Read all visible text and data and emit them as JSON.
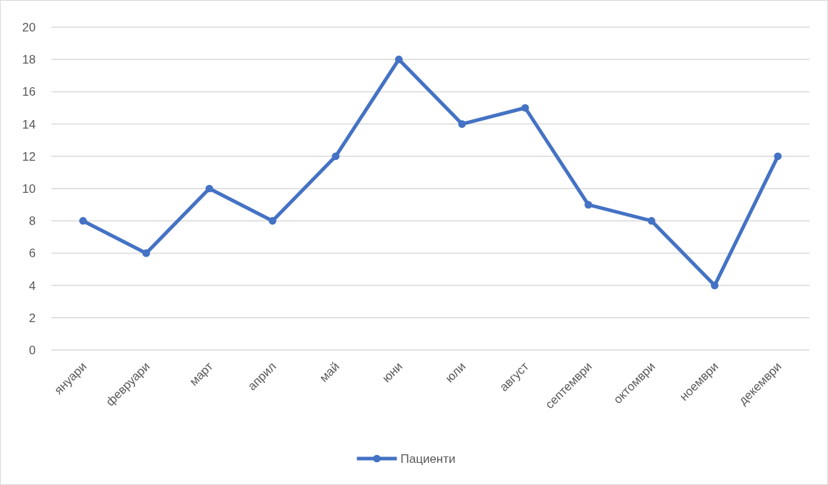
{
  "chart_data": {
    "type": "line",
    "categories": [
      "януари",
      "февруари",
      "март",
      "април",
      "май",
      "юни",
      "юли",
      "август",
      "септември",
      "октомври",
      "ноември",
      "декември"
    ],
    "series": [
      {
        "name": "Пациенти",
        "color": "#4472c4",
        "values": [
          8,
          6,
          10,
          8,
          12,
          18,
          14,
          15,
          9,
          8,
          4,
          12
        ]
      }
    ],
    "ylim": [
      0,
      20
    ],
    "yticks": [
      0,
      2,
      4,
      6,
      8,
      10,
      12,
      14,
      16,
      18,
      20
    ],
    "grid": "y",
    "legend": "bottom",
    "marker": "circle",
    "line_style": "solid"
  }
}
